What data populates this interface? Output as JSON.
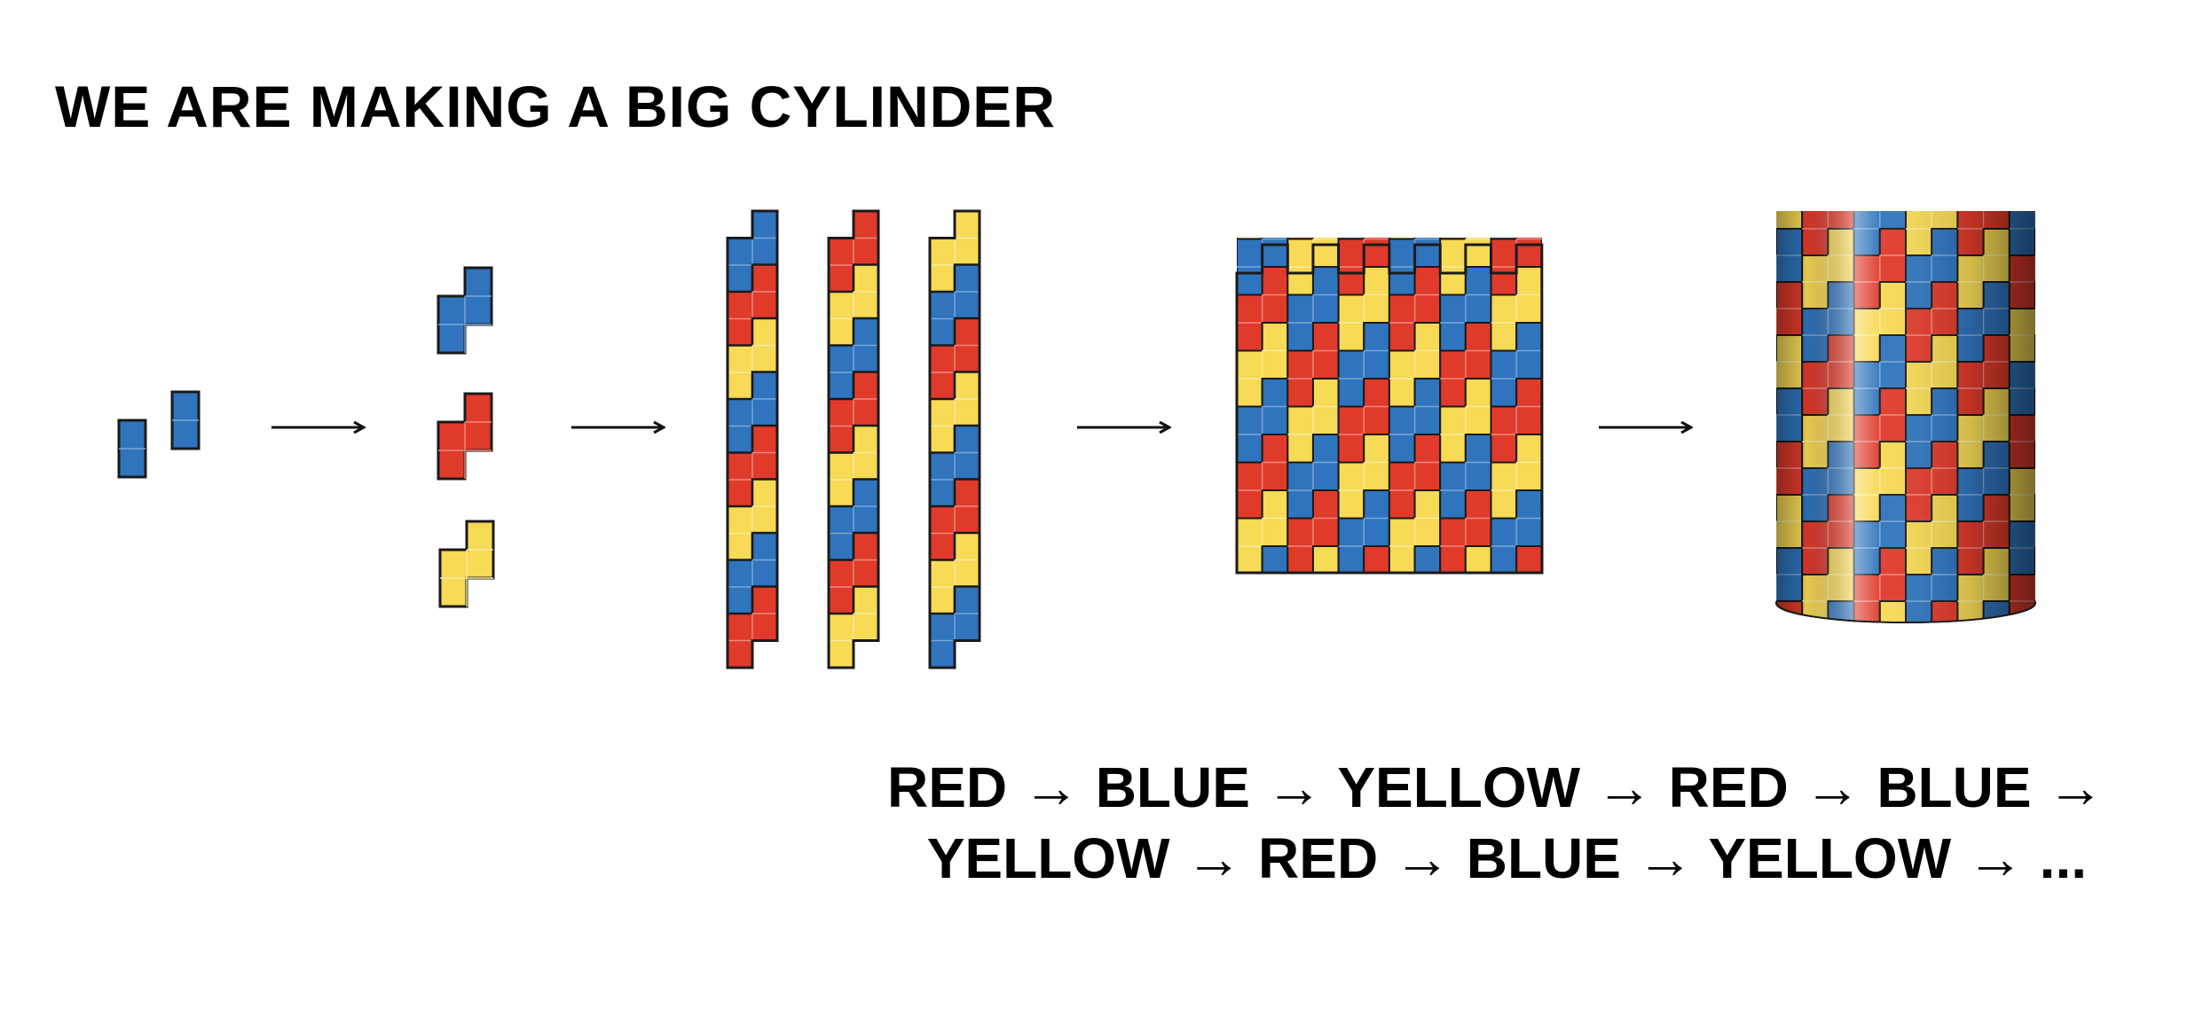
{
  "header": {
    "title": "WE ARE MAKING A BIG CYLINDER"
  },
  "colors": {
    "red": "#e03a2b",
    "blue": "#2f74bd",
    "yellow": "#f7da55",
    "outline": "#1a1a1a"
  },
  "diagram": {
    "steps": [
      "two-dominoes",
      "three-colored-tiles",
      "three-columns",
      "flat-sheet",
      "cylinder"
    ],
    "arrows": 4,
    "column_colors": [
      [
        "blue",
        "red",
        "yellow",
        "blue",
        "red",
        "yellow",
        "blue",
        "red"
      ],
      [
        "red",
        "yellow",
        "blue",
        "red",
        "yellow",
        "blue",
        "red",
        "yellow"
      ],
      [
        "yellow",
        "blue",
        "red",
        "yellow",
        "blue",
        "red",
        "yellow",
        "blue"
      ]
    ]
  },
  "sequence": {
    "line1": "RED → BLUE → YELLOW → RED → BLUE →",
    "line2": "YELLOW → RED → BLUE → YELLOW → ..."
  }
}
